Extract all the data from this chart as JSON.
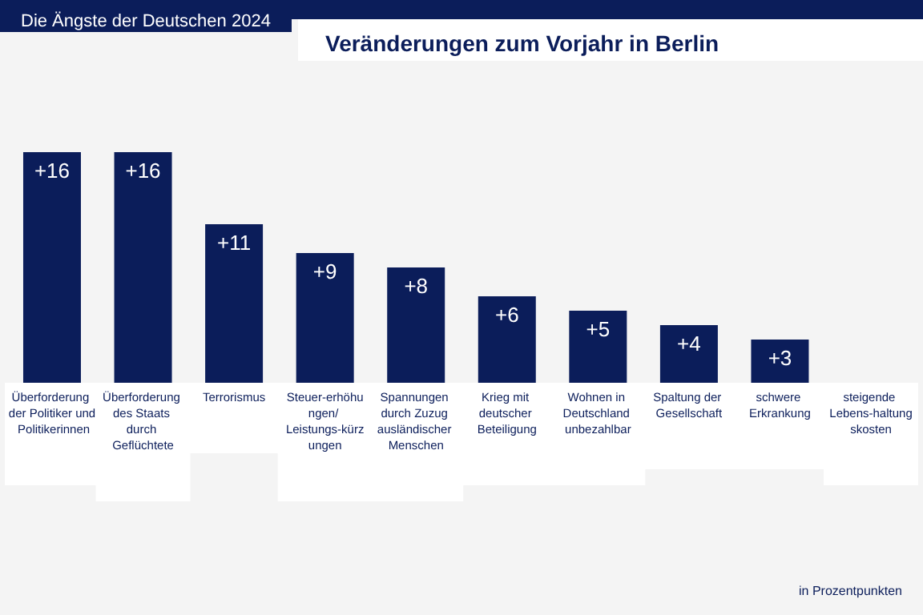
{
  "chart_data": {
    "type": "bar",
    "title": "Veränderungen zum Vorjahr in Berlin",
    "subtitle": "Die Ängste der Deutschen 2024",
    "annotations": [
      "in Prozentpunkten"
    ],
    "categories": [
      "Überforderung der Politiker und Politikerinnen",
      "Überforderung des Staats durch Geflüchtete",
      "Terrorismus",
      "Steuer-erhöhungen/ Leistungs-kürzungen",
      "Spannungen durch Zuzug ausländischer Menschen",
      "Krieg mit deutscher Beteiligung",
      "Wohnen in Deutschland unbezahlbar",
      "Spaltung der Gesellschaft",
      "schwere Erkrankung",
      "steigende Lebens-haltungskosten"
    ],
    "values": [
      16,
      16,
      11,
      9,
      8,
      6,
      5,
      4,
      3,
      null
    ],
    "value_labels": [
      "+16",
      "+16",
      "+11",
      "+9",
      "+8",
      "+6",
      "+5",
      "+4",
      "+3",
      null
    ],
    "color": "#0b1d5a",
    "ylim": [
      0,
      16
    ]
  }
}
